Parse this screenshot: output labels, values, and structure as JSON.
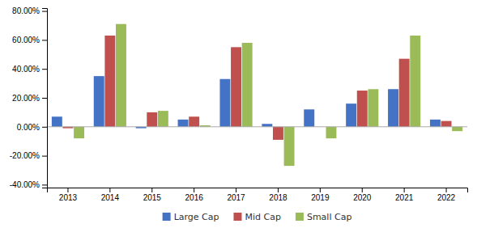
{
  "chart_data": {
    "type": "bar",
    "categories": [
      "2013",
      "2014",
      "2015",
      "2016",
      "2017",
      "2018",
      "2019",
      "2020",
      "2021",
      "2022"
    ],
    "series": [
      {
        "name": "Large Cap",
        "color": "#4472c4",
        "values": [
          0.07,
          0.35,
          -0.01,
          0.05,
          0.33,
          0.02,
          0.12,
          0.16,
          0.26,
          0.05
        ]
      },
      {
        "name": "Mid Cap",
        "color": "#c0504d",
        "values": [
          -0.01,
          0.63,
          0.1,
          0.07,
          0.55,
          -0.09,
          0.0,
          0.25,
          0.47,
          0.04
        ]
      },
      {
        "name": "Small Cap",
        "color": "#9bbb59",
        "values": [
          -0.08,
          0.71,
          0.11,
          0.01,
          0.58,
          -0.27,
          -0.08,
          0.26,
          0.63,
          -0.03
        ]
      }
    ],
    "ylim": [
      -0.42,
      0.82
    ],
    "yticks": [
      {
        "value": -0.4,
        "label": "-40.00%"
      },
      {
        "value": -0.2,
        "label": "-20.00%"
      },
      {
        "value": 0.0,
        "label": "0.00%"
      },
      {
        "value": 0.2,
        "label": "20.00%"
      },
      {
        "value": 0.4,
        "label": "40.00%"
      },
      {
        "value": 0.6,
        "label": "60.00%"
      },
      {
        "value": 0.8,
        "label": "80.00%"
      }
    ],
    "legend": "bottom",
    "grid": false
  }
}
